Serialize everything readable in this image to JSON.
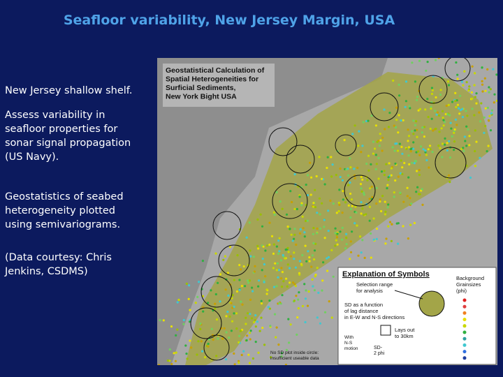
{
  "slide": {
    "title": "Seafloor variability, New Jersey Margin, USA",
    "bullets": [
      [
        "New Jersey shallow shelf."
      ],
      [
        "Assess variability in",
        "seafloor properties for",
        "sonar signal propagation",
        "(US Navy)."
      ],
      [
        "Geostatistics of seabed",
        "heterogeneity plotted",
        "using semivariograms."
      ],
      [
        "(Data courtesy: Chris",
        "Jenkins, CSDMS)"
      ]
    ]
  },
  "map": {
    "title_lines": [
      "Geostatistical Calculation of",
      "Spatial Heterogeneities for",
      "Surficial Sediments,",
      "New York Bight USA"
    ],
    "legend": {
      "title": "Explanation of Symbols",
      "selection": [
        "Selection range",
        "for analysis"
      ],
      "sd": [
        "SD as a function",
        "of lag distance",
        "in E-W and N-S directions"
      ],
      "scale": [
        "Lays out",
        "to 30km"
      ],
      "axis": [
        "With",
        "N-S",
        "motion"
      ],
      "sd_phi": [
        "SD-",
        "2 phi"
      ],
      "note": [
        "No SD plot inside circle:",
        "insufficient useable data"
      ],
      "background": [
        "Background",
        "Grainsizes",
        "(phi)"
      ]
    }
  }
}
